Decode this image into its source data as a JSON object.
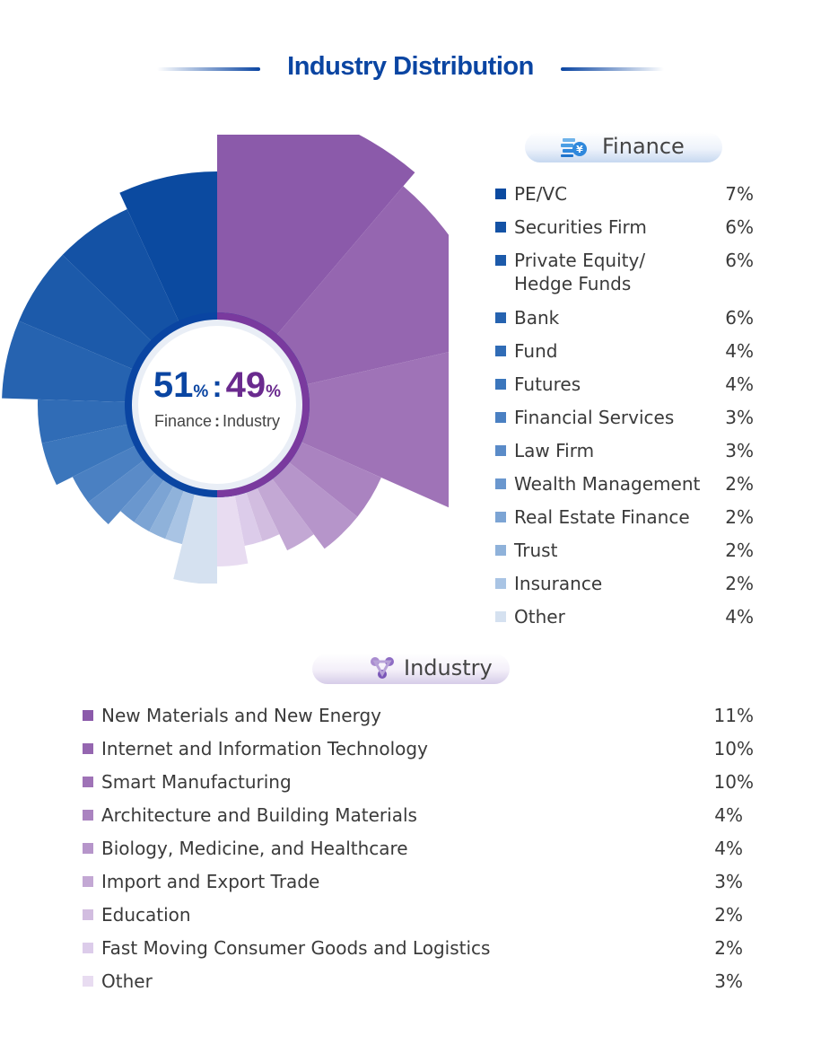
{
  "title": "Industry Distribution",
  "center": {
    "finance_value": "51",
    "industry_value": "49",
    "percent_sign": "%",
    "separator": ":",
    "finance_label": "Finance",
    "label_sep": ":",
    "industry_label": "Industry"
  },
  "finance_header": "Finance",
  "industry_header": "Industry",
  "colors": {
    "accent_blue": "#0a45a2",
    "accent_purple": "#6a2a8e"
  },
  "chart_data": {
    "type": "pie",
    "title": "Industry Distribution",
    "groups": [
      {
        "name": "Finance",
        "total": 51,
        "categories": [
          {
            "label": "PE/VC",
            "value": 7,
            "display": "7%",
            "color": "#0b4aa0"
          },
          {
            "label": "Securities Firm",
            "value": 6,
            "display": "6%",
            "color": "#1452a5"
          },
          {
            "label": "Private Equity/\nHedge Funds",
            "value": 6,
            "display": "6%",
            "color": "#1c5aaa"
          },
          {
            "label": "Bank",
            "value": 6,
            "display": "6%",
            "color": "#2663b0"
          },
          {
            "label": "Fund",
            "value": 4,
            "display": "4%",
            "color": "#306cb6"
          },
          {
            "label": "Futures",
            "value": 4,
            "display": "4%",
            "color": "#3b76bc"
          },
          {
            "label": "Financial Services",
            "value": 3,
            "display": "3%",
            "color": "#4a80c2"
          },
          {
            "label": "Law Firm",
            "value": 3,
            "display": "3%",
            "color": "#5a8bc8"
          },
          {
            "label": "Wealth Management",
            "value": 2,
            "display": "2%",
            "color": "#6a97ce"
          },
          {
            "label": "Real Estate Finance",
            "value": 2,
            "display": "2%",
            "color": "#7ca4d4"
          },
          {
            "label": "Trust",
            "value": 2,
            "display": "2%",
            "color": "#8fb2da"
          },
          {
            "label": "Insurance",
            "value": 2,
            "display": "2%",
            "color": "#a9c4e4"
          },
          {
            "label": "Other",
            "value": 4,
            "display": "4%",
            "color": "#d5e1f0"
          }
        ]
      },
      {
        "name": "Industry",
        "total": 49,
        "categories": [
          {
            "label": "New Materials and New Energy",
            "value": 11,
            "display": "11%",
            "color": "#8b5aaa"
          },
          {
            "label": "Internet and Information Technology",
            "value": 10,
            "display": "10%",
            "color": "#9566b0"
          },
          {
            "label": "Smart Manufacturing",
            "value": 10,
            "display": "10%",
            "color": "#9f73b7"
          },
          {
            "label": "Architecture and Building Materials",
            "value": 4,
            "display": "4%",
            "color": "#aa83c0"
          },
          {
            "label": "Biology, Medicine, and Healthcare",
            "value": 4,
            "display": "4%",
            "color": "#b695ca"
          },
          {
            "label": "Import and Export Trade",
            "value": 3,
            "display": "3%",
            "color": "#c3a8d4"
          },
          {
            "label": "Education",
            "value": 2,
            "display": "2%",
            "color": "#d2bde0"
          },
          {
            "label": "Fast Moving Consumer Goods and Logistics",
            "value": 2,
            "display": "2%",
            "color": "#dcccea"
          },
          {
            "label": "Other",
            "value": 3,
            "display": "3%",
            "color": "#e8dcf1"
          }
        ]
      }
    ]
  }
}
